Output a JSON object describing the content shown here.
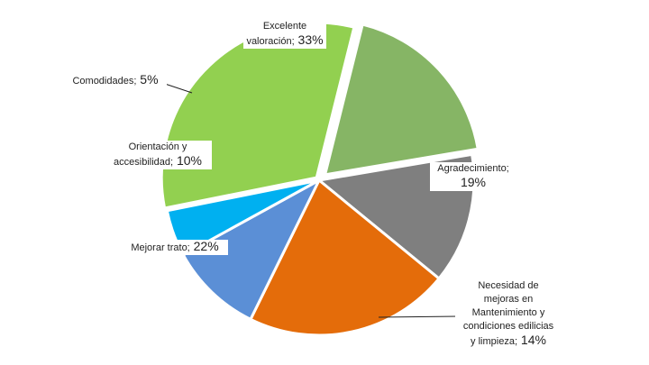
{
  "chart_data": {
    "type": "pie",
    "title": "",
    "slices": [
      {
        "name": "Agradecimiento",
        "label_lines": [
          "Agradecimiento;"
        ],
        "pct_text": "19%",
        "value": 19,
        "color": "#86b565"
      },
      {
        "name": "Necesidad de mejoras en Mantenimiento y condiciones edilicias y limpieza",
        "label_lines": [
          "Necesidad de",
          "mejoras en",
          "Mantenimiento y",
          "condiciones edilicias",
          "y limpieza;"
        ],
        "pct_text": "14%",
        "value": 14,
        "color": "#7f7f7f"
      },
      {
        "name": "Mejorar trato",
        "label_lines": [
          "Mejorar trato;"
        ],
        "pct_text": "22%",
        "value": 22,
        "color": "#e46c0a"
      },
      {
        "name": "Orientación y accesibilidad",
        "label_lines": [
          "Orientación y",
          "accesibilidad;"
        ],
        "pct_text": "10%",
        "value": 10,
        "color": "#5b8fd6"
      },
      {
        "name": "Comodidades",
        "label_lines": [
          "Comodidades;"
        ],
        "pct_text": "5%",
        "value": 5,
        "color": "#00b0f0"
      },
      {
        "name": "Excelente valoración",
        "label_lines": [
          "Excelente",
          "valoración;"
        ],
        "pct_text": "33%",
        "value": 33,
        "color": "#92d050"
      }
    ]
  }
}
